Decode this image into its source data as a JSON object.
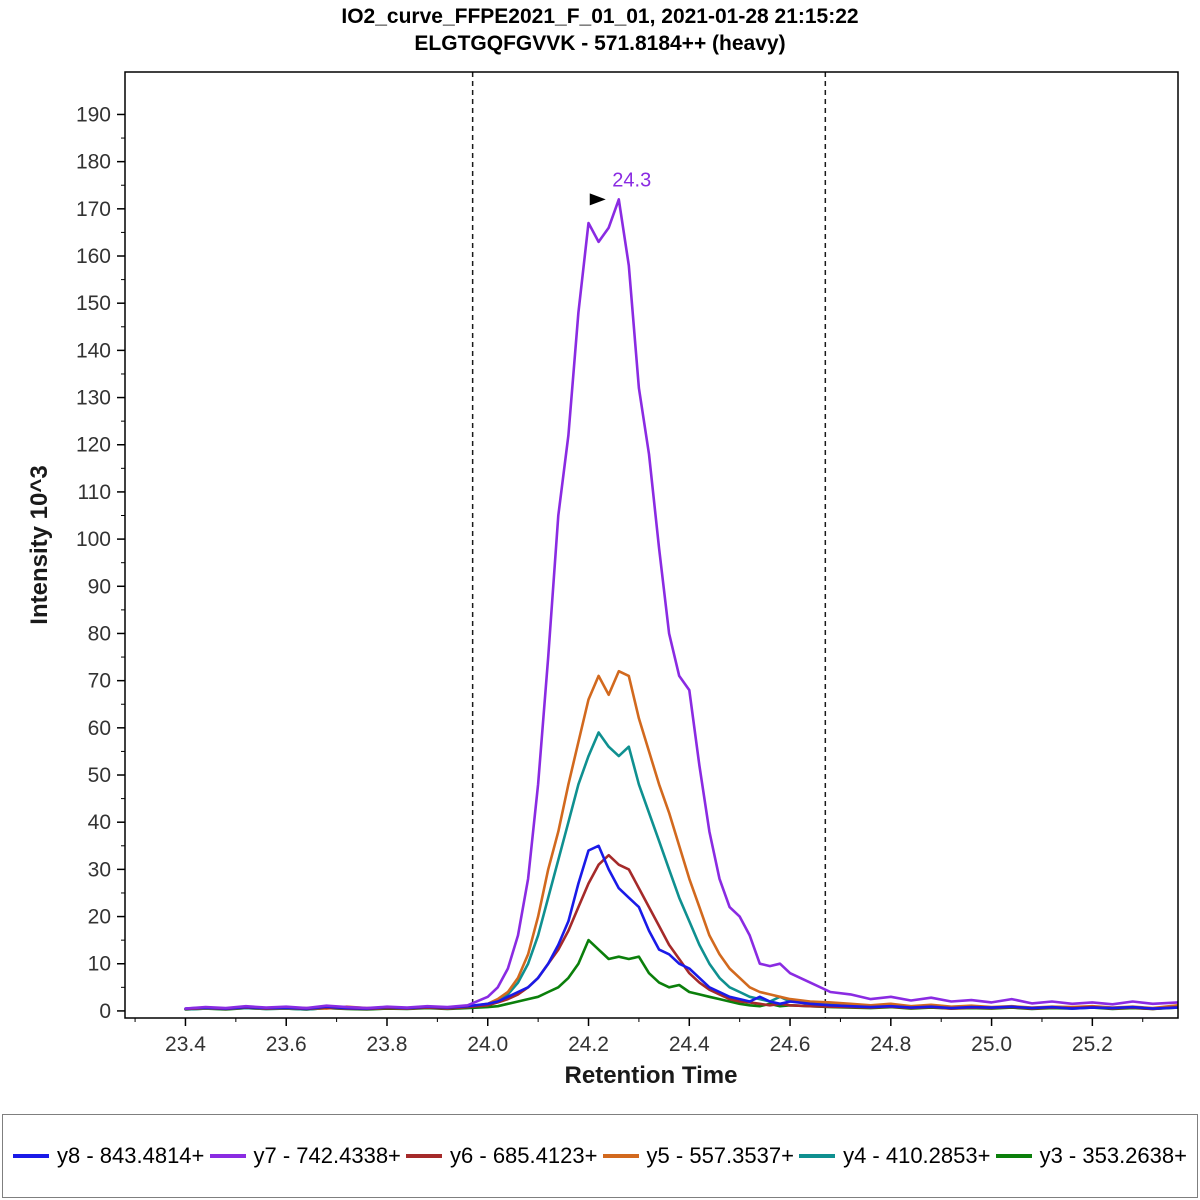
{
  "chart_data": {
    "type": "line",
    "title": "IO2_curve_FFPE2021_F_01_01, 2021-01-28 21:15:22",
    "subtitle": "ELGTGQFGVVK - 571.8184++ (heavy)",
    "xlabel": "Retention Time",
    "ylabel": "Intensity 10^3",
    "xlim": [
      23.28,
      25.37
    ],
    "ylim": [
      -1.5,
      199
    ],
    "x_ticks": [
      23.4,
      23.6,
      23.8,
      24.0,
      24.2,
      24.4,
      24.6,
      24.8,
      25.0,
      25.2
    ],
    "y_ticks": [
      0,
      10,
      20,
      30,
      40,
      50,
      60,
      70,
      80,
      90,
      100,
      110,
      120,
      130,
      140,
      150,
      160,
      170,
      180,
      190
    ],
    "grid": false,
    "legend_position": "bottom",
    "integration_boundaries": [
      23.97,
      24.67
    ],
    "annotation": {
      "label": "24.3",
      "x": 24.26,
      "y": 172,
      "color": "#8a2be2"
    },
    "draw_order": [
      "y3",
      "y4",
      "y5",
      "y6",
      "y8",
      "y7"
    ],
    "x": [
      23.4,
      23.44,
      23.48,
      23.52,
      23.56,
      23.6,
      23.64,
      23.68,
      23.72,
      23.76,
      23.8,
      23.84,
      23.88,
      23.92,
      23.96,
      24.0,
      24.02,
      24.04,
      24.06,
      24.08,
      24.1,
      24.12,
      24.14,
      24.16,
      24.18,
      24.2,
      24.22,
      24.24,
      24.26,
      24.28,
      24.3,
      24.32,
      24.34,
      24.36,
      24.38,
      24.4,
      24.42,
      24.44,
      24.46,
      24.48,
      24.5,
      24.52,
      24.54,
      24.56,
      24.58,
      24.6,
      24.64,
      24.68,
      24.72,
      24.76,
      24.8,
      24.84,
      24.88,
      24.92,
      24.96,
      25.0,
      25.04,
      25.08,
      25.12,
      25.16,
      25.2,
      25.24,
      25.28,
      25.32,
      25.37
    ],
    "series": [
      {
        "id": "y8",
        "name": "y8 - 843.4814+",
        "color": "#1a1ae8",
        "values": [
          0.5,
          0.7,
          0.5,
          0.8,
          0.6,
          0.7,
          0.5,
          0.9,
          0.6,
          0.5,
          0.8,
          0.6,
          0.9,
          0.7,
          1,
          1.5,
          2,
          3,
          4,
          5,
          7,
          10,
          14,
          19,
          27,
          34,
          35,
          30,
          26,
          24,
          22,
          17,
          13,
          12,
          10,
          9,
          7,
          5,
          4,
          3,
          2.5,
          2,
          3,
          2,
          1.5,
          2,
          1.5,
          1.2,
          1,
          0.8,
          1,
          0.7,
          0.9,
          0.6,
          0.8,
          0.7,
          0.9,
          0.6,
          0.8,
          0.5,
          0.7,
          0.6,
          0.8,
          0.5,
          0.7
        ]
      },
      {
        "id": "y7",
        "name": "y7 - 742.4338+",
        "color": "#8a2be2",
        "values": [
          0.5,
          0.8,
          0.6,
          1,
          0.7,
          0.9,
          0.6,
          1.1,
          0.8,
          0.6,
          0.9,
          0.7,
          1,
          0.8,
          1.2,
          3,
          5,
          9,
          16,
          28,
          48,
          75,
          105,
          122,
          148,
          167,
          163,
          166,
          172,
          158,
          132,
          118,
          98,
          80,
          71,
          68,
          52,
          38,
          28,
          22,
          20,
          16,
          10,
          9.5,
          10,
          8,
          6,
          4,
          3.5,
          2.5,
          3,
          2.2,
          2.8,
          2,
          2.3,
          1.8,
          2.5,
          1.6,
          2,
          1.5,
          1.8,
          1.4,
          2,
          1.5,
          1.8
        ]
      },
      {
        "id": "y6",
        "name": "y6 - 685.4123+",
        "color": "#a52a2a",
        "values": [
          0.4,
          0.6,
          0.4,
          0.7,
          0.5,
          0.6,
          0.4,
          0.7,
          0.5,
          0.4,
          0.6,
          0.5,
          0.7,
          0.5,
          0.8,
          1.2,
          1.8,
          2.5,
          3.5,
          5,
          7,
          10,
          13,
          17,
          22,
          27,
          31,
          33,
          31,
          30,
          26,
          22,
          18,
          14,
          11,
          8,
          6,
          4.5,
          3.5,
          2.5,
          2,
          1.8,
          1.5,
          1.2,
          1.5,
          1.2,
          1,
          0.9,
          0.8,
          0.7,
          0.9,
          0.6,
          0.8,
          0.5,
          0.7,
          0.6,
          0.8,
          0.5,
          0.7,
          0.6,
          0.8,
          0.5,
          0.7,
          0.4,
          0.8
        ]
      },
      {
        "id": "y5",
        "name": "y5 - 557.3537+",
        "color": "#d2691e",
        "values": [
          0.4,
          0.6,
          0.5,
          0.8,
          0.5,
          0.7,
          0.6,
          0.5,
          0.9,
          0.6,
          0.7,
          0.5,
          0.8,
          0.6,
          0.9,
          1.5,
          2.5,
          4,
          7,
          12,
          20,
          30,
          38,
          48,
          57,
          66,
          71,
          67,
          72,
          71,
          62,
          55,
          48,
          42,
          35,
          28,
          22,
          16,
          12,
          9,
          7,
          5,
          4,
          3.5,
          3,
          2.5,
          2,
          1.8,
          1.5,
          1.2,
          1.5,
          1,
          1.3,
          0.9,
          1.1,
          0.8,
          1,
          0.7,
          0.9,
          0.8,
          1,
          0.7,
          0.9,
          0.6,
          1.2
        ]
      },
      {
        "id": "y4",
        "name": "y4 - 410.2853+",
        "color": "#0f9090",
        "values": [
          0.3,
          0.5,
          0.4,
          0.6,
          0.4,
          0.5,
          0.3,
          0.6,
          0.5,
          0.4,
          0.6,
          0.5,
          0.7,
          0.5,
          0.8,
          1.2,
          2,
          3.5,
          6,
          10,
          16,
          24,
          32,
          40,
          48,
          54,
          59,
          56,
          54,
          56,
          48,
          42,
          36,
          30,
          24,
          19,
          14,
          10,
          7,
          5,
          4,
          3,
          2.5,
          2,
          3,
          2,
          1.8,
          1.5,
          1.2,
          1,
          1.2,
          0.9,
          1,
          0.8,
          1,
          0.7,
          0.9,
          0.6,
          0.8,
          0.7,
          0.9,
          0.6,
          0.8,
          0.5,
          0.9
        ]
      },
      {
        "id": "y3",
        "name": "y3 - 353.2638+",
        "color": "#0b7f0b",
        "values": [
          0.3,
          0.5,
          0.3,
          0.6,
          0.4,
          0.5,
          0.3,
          0.6,
          0.4,
          0.3,
          0.5,
          0.4,
          0.6,
          0.4,
          0.6,
          0.8,
          1,
          1.5,
          2,
          2.5,
          3,
          4,
          5,
          7,
          10,
          15,
          13,
          11,
          11.5,
          11,
          11.5,
          8,
          6,
          5,
          5.5,
          4,
          3.5,
          3,
          2.5,
          2,
          1.5,
          1.2,
          1,
          1.5,
          1,
          1.2,
          1,
          0.8,
          0.7,
          0.6,
          0.8,
          0.5,
          0.7,
          0.5,
          0.6,
          0.5,
          0.7,
          0.4,
          0.6,
          0.5,
          0.7,
          0.4,
          0.6,
          0.4,
          0.7
        ]
      }
    ]
  }
}
